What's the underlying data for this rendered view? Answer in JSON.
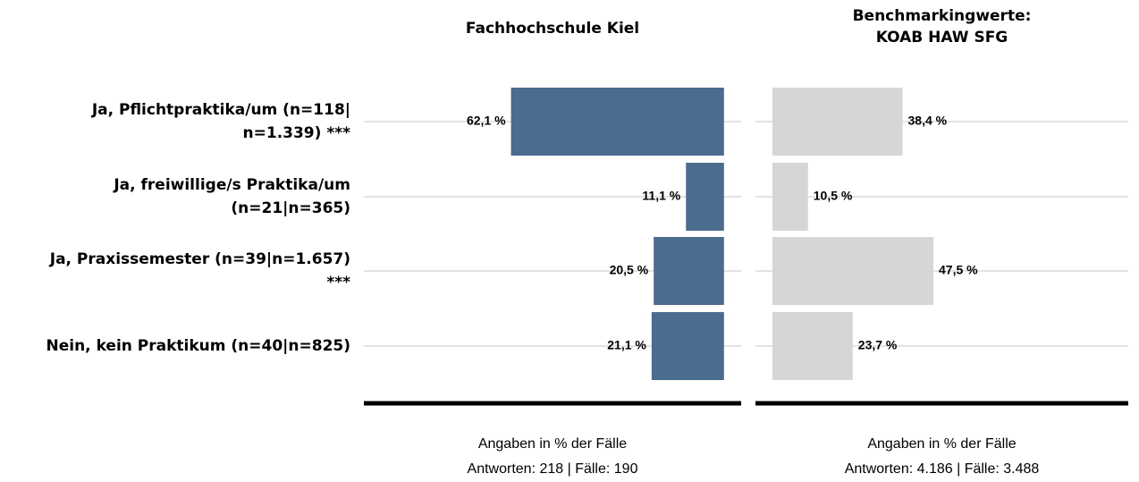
{
  "chart_data": [
    {
      "type": "bar",
      "orientation": "horizontal",
      "title": [
        "Fachhochschule Kiel"
      ],
      "categories": [
        [
          "Ja, Pflichtpraktika/um (n=118|",
          "n=1.339) ***"
        ],
        [
          "Ja, freiwillige/s Praktika/um",
          "(n=21|n=365)"
        ],
        [
          "Ja, Praxissemester (n=39|n=1.657)",
          "***"
        ],
        [
          "Nein, kein Praktikum (n=40|n=825)"
        ]
      ],
      "values": [
        62.1,
        11.1,
        20.5,
        21.1
      ],
      "value_labels": [
        "62,1 %",
        "11,1 %",
        "20,5 %",
        "21,1 %"
      ],
      "color": "#4b6b8f",
      "xlim": [
        105,
        -5
      ],
      "notes": [
        "Angaben in % der Fälle",
        "Antworten: 218 | Fälle: 190"
      ]
    },
    {
      "type": "bar",
      "orientation": "horizontal",
      "title": [
        "Benchmarkingwerte:",
        "KOAB HAW SFG"
      ],
      "values": [
        38.4,
        10.5,
        47.5,
        23.7
      ],
      "value_labels": [
        "38,4 %",
        "10,5 %",
        "47,5 %",
        "23,7 %"
      ],
      "color": "#d6d6d6",
      "xlim": [
        -5,
        105
      ],
      "notes": [
        "Angaben in % der Fälle",
        "Antworten: 4.186 | Fälle: 3.488"
      ]
    }
  ]
}
